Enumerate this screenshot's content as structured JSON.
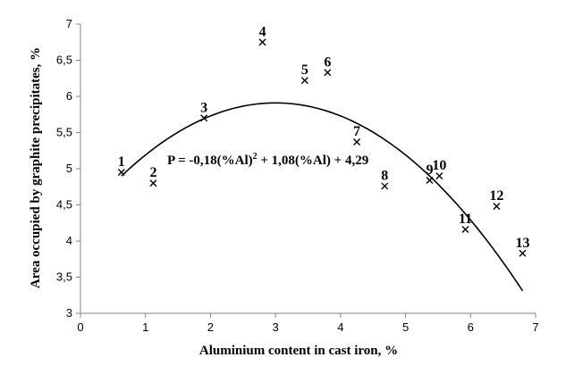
{
  "chart_data": {
    "type": "scatter",
    "xlabel": "Aluminium content in cast iron, %",
    "ylabel": "Area occupied by graphite precipitates, %",
    "xlim": [
      0,
      7
    ],
    "ylim": [
      3,
      7
    ],
    "x_ticks": [
      "0",
      "1",
      "2",
      "3",
      "4",
      "5",
      "6",
      "7"
    ],
    "y_ticks": [
      "3",
      "3,5",
      "4",
      "4,5",
      "5",
      "5,5",
      "6",
      "6,5",
      "7"
    ],
    "grid": false,
    "legend": "none",
    "marker": "x",
    "points": [
      {
        "label": "1",
        "x": 0.63,
        "y": 4.95
      },
      {
        "label": "2",
        "x": 1.12,
        "y": 4.8
      },
      {
        "label": "3",
        "x": 1.9,
        "y": 5.7
      },
      {
        "label": "4",
        "x": 2.8,
        "y": 6.75
      },
      {
        "label": "5",
        "x": 3.45,
        "y": 6.22
      },
      {
        "label": "6",
        "x": 3.8,
        "y": 6.33
      },
      {
        "label": "7",
        "x": 4.25,
        "y": 5.37
      },
      {
        "label": "8",
        "x": 4.68,
        "y": 4.76
      },
      {
        "label": "9",
        "x": 5.37,
        "y": 4.84
      },
      {
        "label": "10",
        "x": 5.52,
        "y": 4.9
      },
      {
        "label": "11",
        "x": 5.92,
        "y": 4.16
      },
      {
        "label": "12",
        "x": 6.4,
        "y": 4.48
      },
      {
        "label": "13",
        "x": 6.8,
        "y": 3.83
      }
    ],
    "trendline": {
      "equation_parts": {
        "lhs": "P = -0,18(%Al)",
        "sup": "2",
        "rhs": " + 1,08(%Al) + 4,29"
      },
      "coefficients": {
        "a": -0.18,
        "b": 1.08,
        "c": 4.29
      },
      "x_range": [
        0.63,
        6.8
      ]
    },
    "colors": {
      "axis": "#868686",
      "marker": "#000000",
      "curve": "#000000",
      "text": "#000000"
    }
  }
}
